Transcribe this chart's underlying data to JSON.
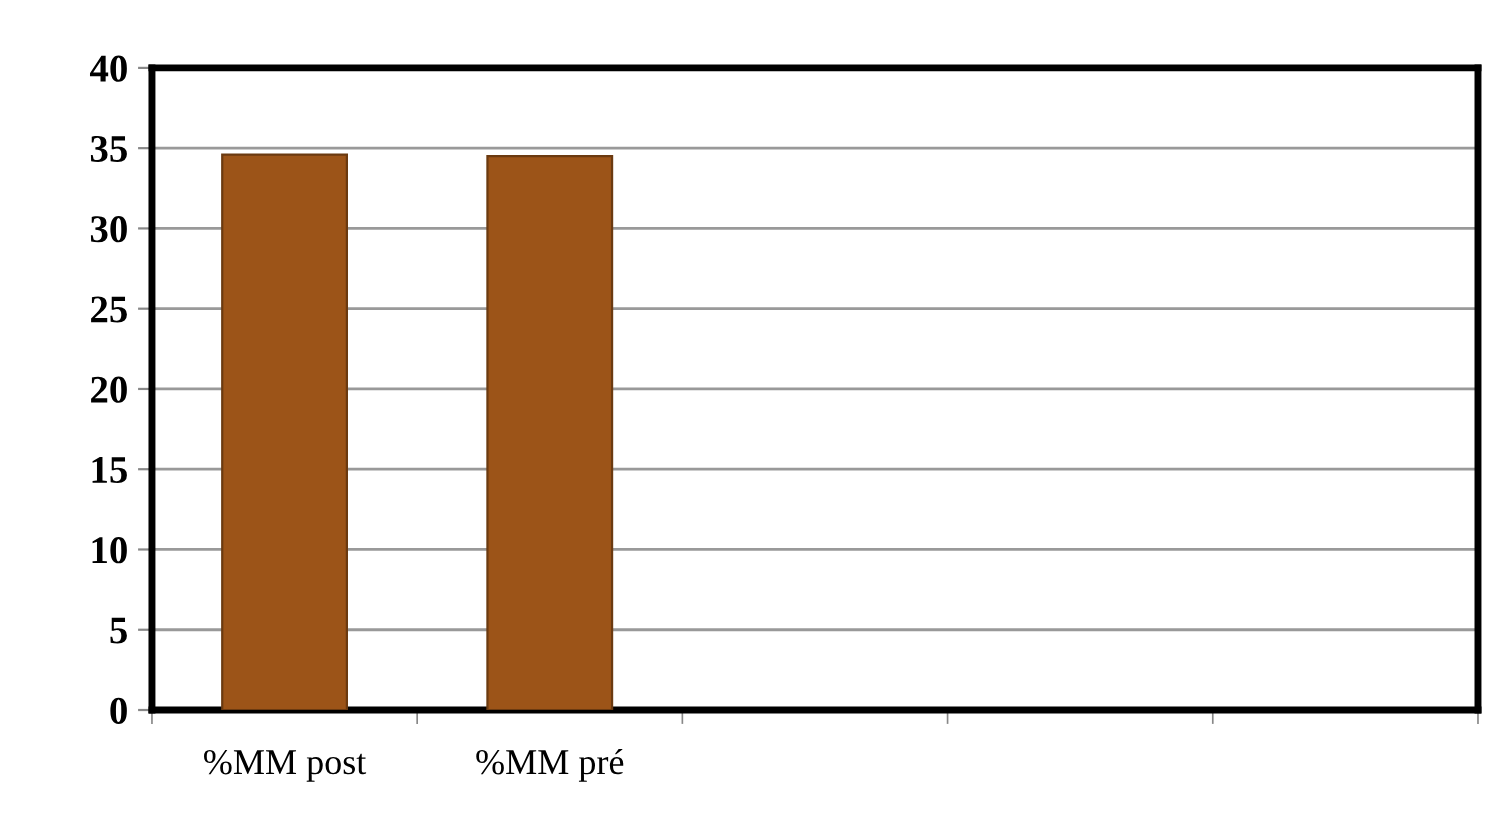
{
  "chart_data": {
    "type": "bar",
    "categories": [
      "%MM post",
      "%MM pré",
      null,
      null,
      null
    ],
    "values": [
      34.6,
      34.5,
      null,
      null,
      null
    ],
    "color": "#9c5418",
    "ylim": [
      0,
      40
    ],
    "yticks": [
      0,
      5,
      10,
      15,
      20,
      25,
      30,
      35,
      40
    ],
    "grid": "y"
  }
}
